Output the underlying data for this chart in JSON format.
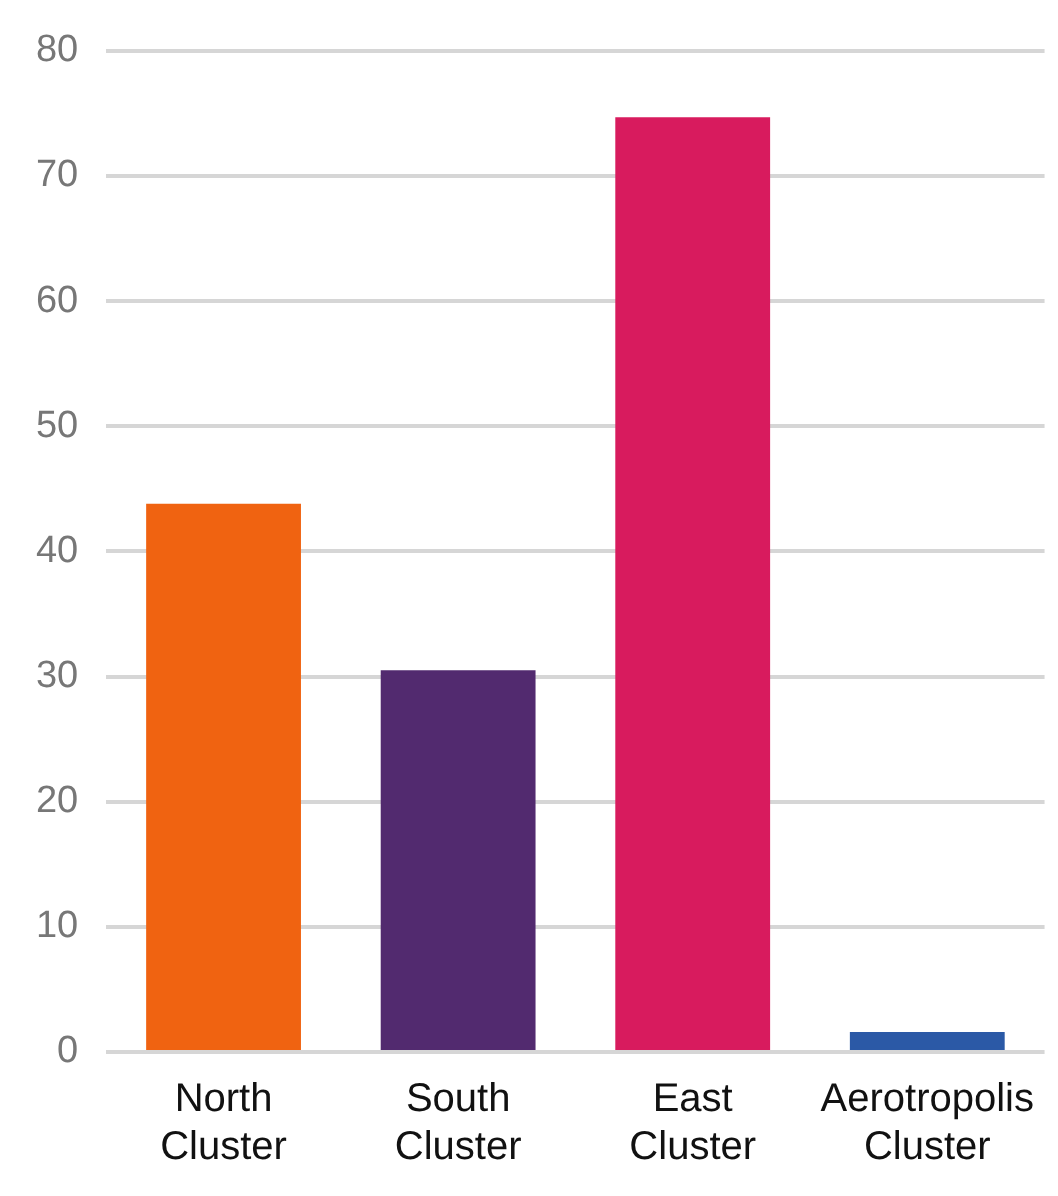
{
  "chart_data": {
    "type": "bar",
    "categories": [
      "North Cluster",
      "South Cluster",
      "East Cluster",
      "Aerotropolis Cluster"
    ],
    "values": [
      43.8,
      30.5,
      74.7,
      1.6
    ],
    "colors": [
      "#f06311",
      "#522a6f",
      "#d81b5e",
      "#2b59a6"
    ],
    "ylim": [
      0,
      80
    ],
    "yticks": [
      0,
      10,
      20,
      30,
      40,
      50,
      60,
      70,
      80
    ],
    "grid": "y",
    "legend": false
  }
}
